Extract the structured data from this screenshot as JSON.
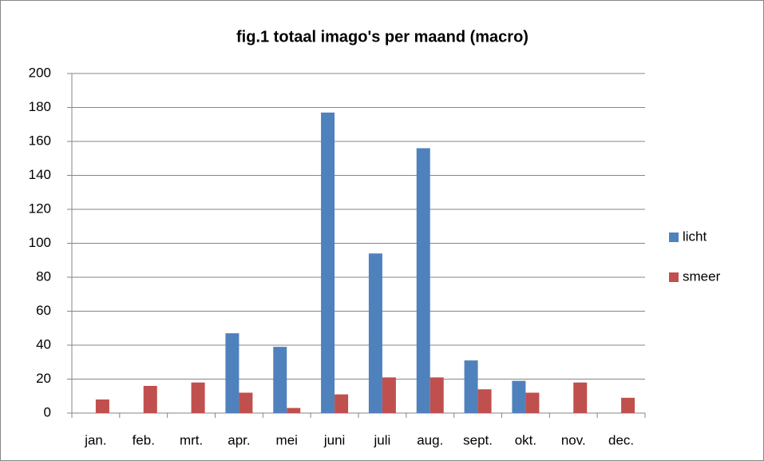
{
  "chart_data": {
    "type": "bar",
    "title": "fig.1 totaal imago's per maand (macro)",
    "categories": [
      "jan.",
      "feb.",
      "mrt.",
      "apr.",
      "mei",
      "juni",
      "juli",
      "aug.",
      "sept.",
      "okt.",
      "nov.",
      "dec."
    ],
    "series": [
      {
        "name": "licht",
        "color": "#4f81bd",
        "values": [
          0,
          0,
          0,
          47,
          39,
          177,
          94,
          156,
          31,
          19,
          0,
          0
        ]
      },
      {
        "name": "smeer",
        "color": "#c0504d",
        "values": [
          8,
          16,
          18,
          12,
          3,
          11,
          21,
          21,
          14,
          12,
          18,
          9
        ]
      }
    ],
    "ylim": [
      0,
      200
    ],
    "yticks": [
      0,
      20,
      40,
      60,
      80,
      100,
      120,
      140,
      160,
      180,
      200
    ],
    "grid": true,
    "legend": "right"
  }
}
